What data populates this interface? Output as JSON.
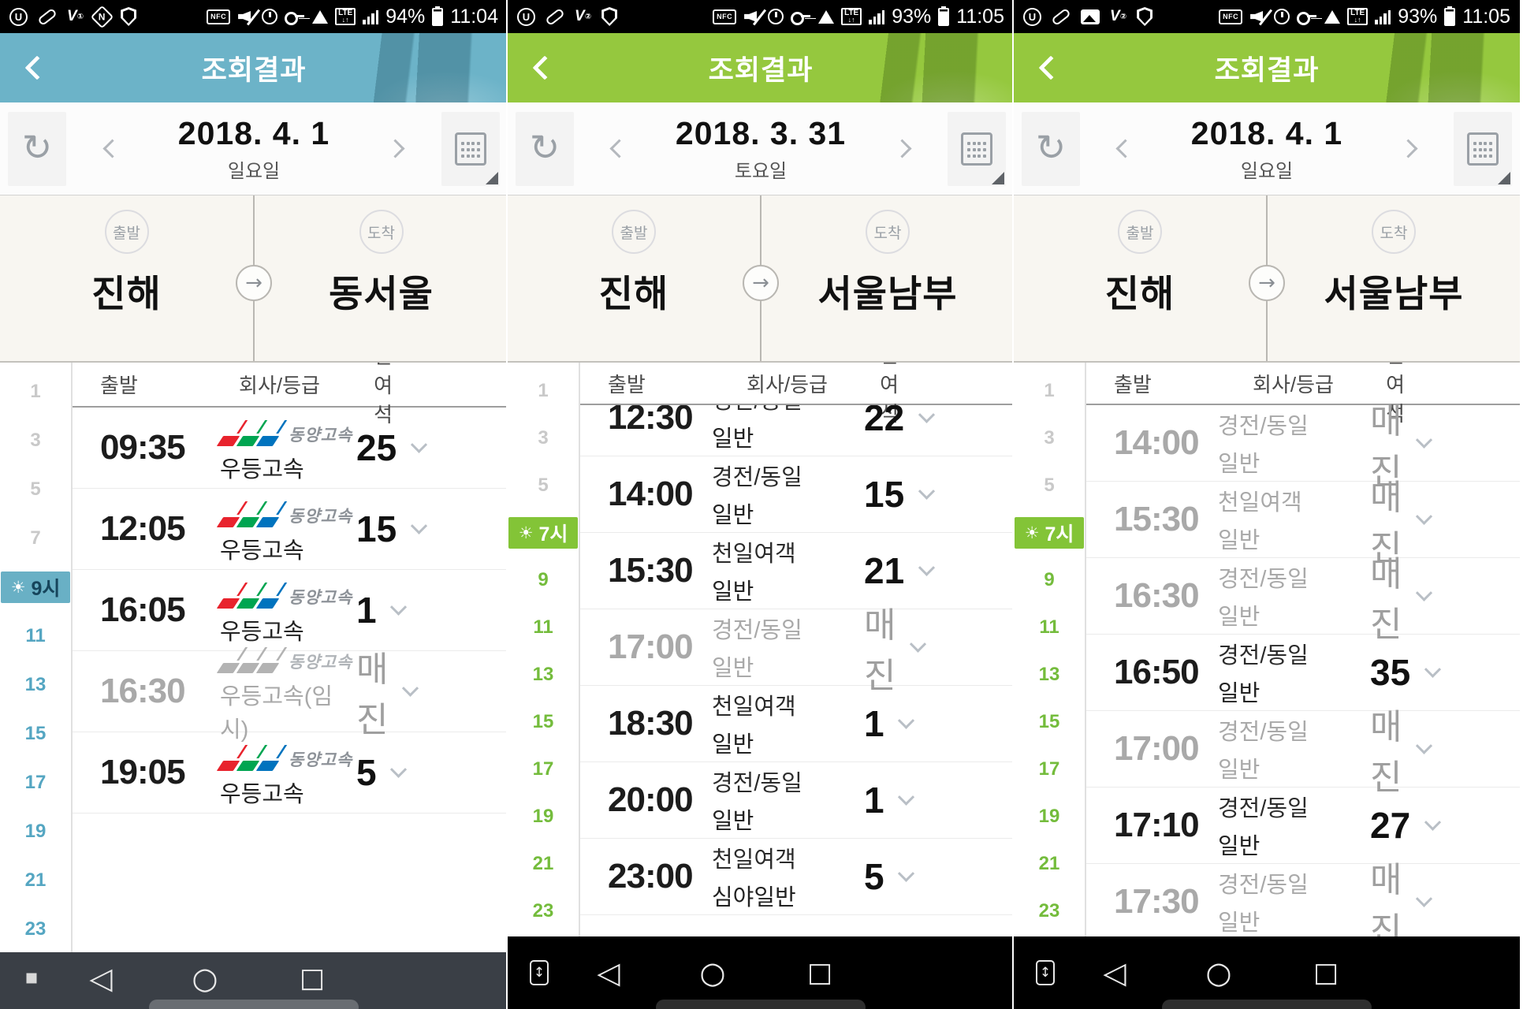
{
  "shared": {
    "app_title": "조회결과",
    "table_headers": {
      "depart": "출발",
      "company_class": "회사/등급",
      "seats": "잔여석"
    },
    "route_labels": {
      "depart": "출발",
      "arrive": "도착"
    },
    "status_text": {
      "nfc": "NFC",
      "lte": "LTE",
      "lte_arrows": "↓↑"
    },
    "icons": {
      "status_left": [
        "uplus-app-icon",
        "pill-app-icon",
        "gallery-app-icon",
        "v-app-icon",
        "n-app-icon",
        "shield-icon"
      ],
      "status_right": [
        "nfc-icon",
        "mute-icon",
        "alarm-icon",
        "key-icon",
        "wifi-lock-icon",
        "lte-icon",
        "signal-icon",
        "battery-icon"
      ],
      "nav": [
        "pin-window-icon",
        "capture-icon",
        "nav-back-icon",
        "nav-home-icon",
        "nav-recents-icon"
      ],
      "other": [
        "back-icon",
        "refresh-icon",
        "calendar-icon",
        "sun-icon",
        "arrow-right-icon",
        "chevron-down-icon",
        "sort-icon"
      ]
    },
    "logo_colors": {
      "red": "#e8232d",
      "green": "#00a551",
      "blue": "#0073be"
    },
    "sun_glyph": "☀",
    "refresh_glyph": "↻",
    "arrow_glyph": "→",
    "capture_glyph": "↕",
    "nav_glyphs": {
      "back": "◁",
      "home": "○",
      "recents": "□"
    }
  },
  "panels": [
    {
      "status_bar": {
        "time": "11:04",
        "battery": "94%"
      },
      "header": {
        "title": "조회결과"
      },
      "date_nav": {
        "date": "2018. 4. 1",
        "weekday": "일요일"
      },
      "route": {
        "from": "진해",
        "to": "동서울"
      },
      "rail": [
        {
          "label": "1",
          "state": "past"
        },
        {
          "label": "3",
          "state": "past"
        },
        {
          "label": "5",
          "state": "past"
        },
        {
          "label": "7",
          "state": "past"
        },
        {
          "label": "9시",
          "state": "active",
          "sun": true
        },
        {
          "label": "11",
          "state": "future"
        },
        {
          "label": "13",
          "state": "future"
        },
        {
          "label": "15",
          "state": "future"
        },
        {
          "label": "17",
          "state": "future"
        },
        {
          "label": "19",
          "state": "future"
        },
        {
          "label": "21",
          "state": "future"
        },
        {
          "label": "23",
          "state": "future"
        }
      ],
      "rows": [
        {
          "time": "09:35",
          "company": "동양고속",
          "klass": "우등고속",
          "seats": "25",
          "logo": true
        },
        {
          "time": "12:05",
          "company": "동양고속",
          "klass": "우등고속",
          "seats": "15",
          "logo": true
        },
        {
          "time": "16:05",
          "company": "동양고속",
          "klass": "우등고속",
          "seats": "1",
          "logo": true
        },
        {
          "time": "16:30",
          "company": "동양고속",
          "klass": "우등고속(임시)",
          "seats": "매진",
          "logo": true,
          "sold_out": true
        },
        {
          "time": "19:05",
          "company": "동양고속",
          "klass": "우등고속",
          "seats": "5",
          "logo": true
        }
      ],
      "theme": {
        "header_bg": "#6cb3c8",
        "badge_bg": "#69b0c5",
        "badge_fg": "#16455c",
        "accent": "#55a6c2",
        "nav_bg": "#3a3f46",
        "nav_pill": "#696d72",
        "photo": "rgba(13,62,79,0.28)"
      }
    },
    {
      "status_bar": {
        "time": "11:05",
        "battery": "93%"
      },
      "header": {
        "title": "조회결과"
      },
      "date_nav": {
        "date": "2018. 3. 31",
        "weekday": "토요일"
      },
      "route": {
        "from": "진해",
        "to": "서울남부"
      },
      "rail": [
        {
          "label": "1",
          "state": "past"
        },
        {
          "label": "3",
          "state": "past"
        },
        {
          "label": "5",
          "state": "past"
        },
        {
          "label": "7시",
          "state": "active",
          "sun": true
        },
        {
          "label": "9",
          "state": "future"
        },
        {
          "label": "11",
          "state": "future"
        },
        {
          "label": "13",
          "state": "future"
        },
        {
          "label": "15",
          "state": "future"
        },
        {
          "label": "17",
          "state": "future"
        },
        {
          "label": "19",
          "state": "future"
        },
        {
          "label": "21",
          "state": "future"
        },
        {
          "label": "23",
          "state": "future"
        }
      ],
      "rows": [
        {
          "time": "12:30",
          "company": "경전/동일",
          "klass": "일반",
          "seats": "22",
          "text": true
        },
        {
          "time": "14:00",
          "company": "경전/동일",
          "klass": "일반",
          "seats": "15",
          "text": true
        },
        {
          "time": "15:30",
          "company": "천일여객",
          "klass": "일반",
          "seats": "21",
          "text": true
        },
        {
          "time": "17:00",
          "company": "경전/동일",
          "klass": "일반",
          "seats": "매진",
          "text": true,
          "sold_out": true
        },
        {
          "time": "18:30",
          "company": "천일여객",
          "klass": "일반",
          "seats": "1",
          "text": true
        },
        {
          "time": "20:00",
          "company": "경전/동일",
          "klass": "일반",
          "seats": "1",
          "text": true
        },
        {
          "time": "23:00",
          "company": "천일여객",
          "klass": "심야일반",
          "seats": "5",
          "text": true
        }
      ],
      "theme": {
        "header_bg": "#95c83e",
        "badge_bg": "#83c437",
        "badge_fg": "#ffffff",
        "accent": "#74bc3c",
        "nav_bg": "#000000",
        "nav_pill": "#2e2e2e",
        "photo": "rgba(42,77,9,0.30)"
      }
    },
    {
      "status_bar": {
        "time": "11:05",
        "battery": "93%"
      },
      "header": {
        "title": "조회결과"
      },
      "date_nav": {
        "date": "2018. 4. 1",
        "weekday": "일요일"
      },
      "route": {
        "from": "진해",
        "to": "서울남부"
      },
      "rail": [
        {
          "label": "1",
          "state": "past"
        },
        {
          "label": "3",
          "state": "past"
        },
        {
          "label": "5",
          "state": "past"
        },
        {
          "label": "7시",
          "state": "active",
          "sun": true
        },
        {
          "label": "9",
          "state": "future"
        },
        {
          "label": "11",
          "state": "future"
        },
        {
          "label": "13",
          "state": "future"
        },
        {
          "label": "15",
          "state": "future"
        },
        {
          "label": "17",
          "state": "future"
        },
        {
          "label": "19",
          "state": "future"
        },
        {
          "label": "21",
          "state": "future"
        },
        {
          "label": "23",
          "state": "future"
        }
      ],
      "rows": [
        {
          "time": "14:00",
          "company": "경전/동일",
          "klass": "일반",
          "seats": "매진",
          "text": true,
          "sold_out": true
        },
        {
          "time": "15:30",
          "company": "천일여객",
          "klass": "일반",
          "seats": "매진",
          "text": true,
          "sold_out": true
        },
        {
          "time": "16:30",
          "company": "경전/동일",
          "klass": "일반",
          "seats": "매진",
          "text": true,
          "sold_out": true
        },
        {
          "time": "16:50",
          "company": "경전/동일",
          "klass": "일반",
          "seats": "35",
          "text": true
        },
        {
          "time": "17:00",
          "company": "경전/동일",
          "klass": "일반",
          "seats": "매진",
          "text": true,
          "sold_out": true
        },
        {
          "time": "17:10",
          "company": "경전/동일",
          "klass": "일반",
          "seats": "27",
          "text": true
        },
        {
          "time": "17:30",
          "company": "경전/동일",
          "klass": "일반",
          "seats": "매진",
          "text": true,
          "sold_out": true
        }
      ],
      "theme": {
        "header_bg": "#95c83e",
        "badge_bg": "#83c437",
        "badge_fg": "#ffffff",
        "accent": "#74bc3c",
        "nav_bg": "#000000",
        "nav_pill": "#2e2e2e",
        "photo": "rgba(42,77,9,0.30)"
      }
    }
  ]
}
